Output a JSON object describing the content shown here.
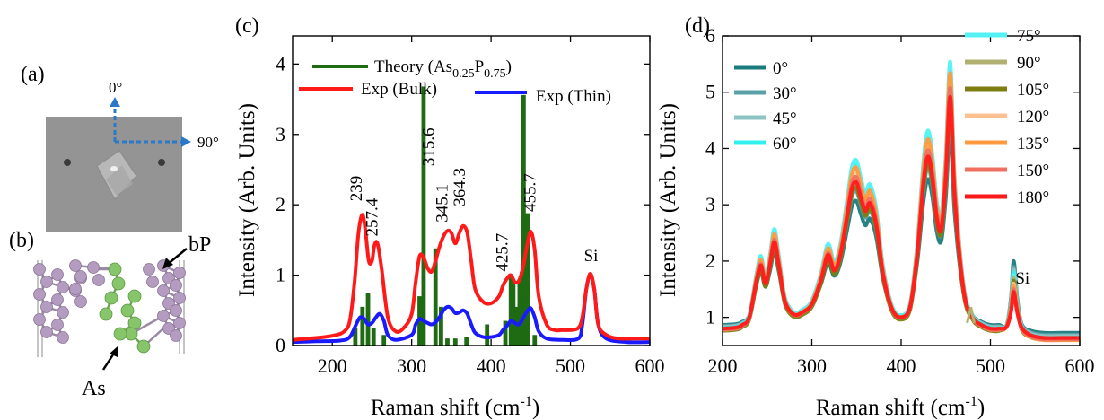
{
  "panels": {
    "a": {
      "label": "(a)",
      "directions": [
        "0°",
        "90°"
      ]
    },
    "b": {
      "label": "(b)",
      "annotations": [
        "bP",
        "As"
      ]
    }
  },
  "colors": {
    "theory": "#1e6b14",
    "bulk": "#ff1a1a",
    "thin": "#1a1aff",
    "arrow_blue": "#2a78c8",
    "atom_p": "#b49bc0",
    "atom_as": "#86c56a"
  },
  "chart_data": [
    {
      "panel": "(c)",
      "type": "line",
      "xlabel": "Raman shift (cm",
      "xlabel_sup": "-1",
      "xlabel_tail": ")",
      "ylabel": "Intensity (Arb. Units)",
      "xlim": [
        150,
        600
      ],
      "ylim": [
        0,
        4.4
      ],
      "xticks": [
        200,
        300,
        400,
        500,
        600
      ],
      "yticks": [
        0,
        1,
        2,
        3,
        4
      ],
      "legend": {
        "placement": "top",
        "entries": [
          {
            "series": "theory",
            "text": "Theory (As",
            "sub1": "0.25",
            "mid": "P",
            "sub2": "0.75",
            "tail": ")"
          },
          {
            "series": "bulk",
            "text": "Exp (Bulk)"
          },
          {
            "series": "thin",
            "text": "Exp (Thin)"
          }
        ]
      },
      "series": [
        {
          "name": "Theory (As0.25P0.75)",
          "key": "theory",
          "kind": "stick",
          "x": [
            229,
            238,
            245,
            252,
            265,
            310,
            315,
            330,
            337,
            345,
            355,
            369,
            395,
            418,
            425,
            428,
            432,
            436,
            439,
            441,
            443,
            446,
            455
          ],
          "y": [
            0.25,
            0.55,
            0.75,
            0.25,
            0.15,
            0.7,
            3.68,
            1.38,
            0.55,
            0.1,
            0.1,
            0.12,
            0.3,
            0.35,
            0.98,
            0.9,
            0.55,
            0.9,
            1.05,
            3.56,
            0.7,
            1.88,
            0.15
          ]
        },
        {
          "name": "Exp (Bulk)",
          "key": "bulk",
          "kind": "line",
          "x": [
            150,
            170,
            190,
            205,
            215,
            222,
            228,
            233,
            238,
            242,
            246,
            250,
            253,
            257,
            262,
            270,
            280,
            290,
            300,
            305,
            310,
            315,
            320,
            325,
            330,
            335,
            340,
            345,
            350,
            355,
            360,
            365,
            370,
            375,
            380,
            390,
            400,
            410,
            415,
            420,
            425,
            430,
            435,
            440,
            445,
            450,
            455,
            460,
            470,
            480,
            490,
            500,
            510,
            515,
            520,
            525,
            530,
            535,
            545,
            560,
            580,
            600
          ],
          "y": [
            0.08,
            0.1,
            0.12,
            0.15,
            0.2,
            0.35,
            0.9,
            1.6,
            1.86,
            1.6,
            1.2,
            1.2,
            1.42,
            1.45,
            1.1,
            0.4,
            0.2,
            0.25,
            0.45,
            0.9,
            1.27,
            1.25,
            1.1,
            1.05,
            1.2,
            1.4,
            1.55,
            1.63,
            1.6,
            1.45,
            1.6,
            1.7,
            1.6,
            1.2,
            0.8,
            0.62,
            0.6,
            0.7,
            0.85,
            0.95,
            1.0,
            0.9,
            0.92,
            1.1,
            1.4,
            1.62,
            1.35,
            0.7,
            0.3,
            0.22,
            0.22,
            0.22,
            0.25,
            0.4,
            0.8,
            1.02,
            0.8,
            0.3,
            0.15,
            0.1,
            0.1,
            0.1
          ]
        },
        {
          "name": "Exp (Thin)",
          "key": "thin",
          "kind": "line",
          "x": [
            150,
            180,
            210,
            222,
            230,
            235,
            240,
            245,
            250,
            255,
            260,
            265,
            270,
            280,
            300,
            305,
            310,
            315,
            320,
            325,
            330,
            335,
            340,
            345,
            350,
            355,
            360,
            365,
            370,
            375,
            380,
            390,
            400,
            410,
            415,
            420,
            425,
            430,
            435,
            440,
            445,
            450,
            455,
            460,
            470,
            490,
            510,
            515,
            520,
            525,
            530,
            535,
            545,
            570,
            600
          ],
          "y": [
            0.05,
            0.06,
            0.07,
            0.12,
            0.3,
            0.4,
            0.38,
            0.3,
            0.32,
            0.4,
            0.45,
            0.35,
            0.15,
            0.08,
            0.15,
            0.3,
            0.38,
            0.35,
            0.32,
            0.3,
            0.33,
            0.4,
            0.5,
            0.55,
            0.53,
            0.46,
            0.47,
            0.5,
            0.45,
            0.3,
            0.18,
            0.12,
            0.12,
            0.15,
            0.22,
            0.28,
            0.35,
            0.32,
            0.3,
            0.38,
            0.48,
            0.53,
            0.4,
            0.2,
            0.1,
            0.08,
            0.1,
            0.3,
            0.8,
            1.0,
            0.8,
            0.3,
            0.1,
            0.05,
            0.05
          ]
        }
      ],
      "annotations": [
        {
          "text": "239",
          "x": 237,
          "y": 2.05,
          "rotate": true
        },
        {
          "text": "257.4",
          "x": 257,
          "y": 1.55,
          "rotate": true
        },
        {
          "text": "315.6",
          "x": 328,
          "y": 2.55,
          "rotate": true
        },
        {
          "text": "345.1",
          "x": 345,
          "y": 1.75,
          "rotate": true
        },
        {
          "text": "364.3",
          "x": 367,
          "y": 1.98,
          "rotate": true
        },
        {
          "text": "425.7",
          "x": 421,
          "y": 1.05,
          "rotate": true
        },
        {
          "text": "455.7",
          "x": 456,
          "y": 1.9,
          "rotate": true
        },
        {
          "text": "Si",
          "x": 526,
          "y": 1.2,
          "rotate": false
        }
      ]
    },
    {
      "panel": "(d)",
      "type": "line",
      "xlabel": "Raman shift (cm",
      "xlabel_sup": "-1",
      "xlabel_tail": ")",
      "ylabel": "Intensity (Arb. Units)",
      "xlim": [
        200,
        600
      ],
      "ylim": [
        0.5,
        6
      ],
      "xticks": [
        200,
        300,
        400,
        500,
        600
      ],
      "yticks": [
        1,
        2,
        3,
        4,
        5,
        6
      ],
      "legend": {
        "placement": "top",
        "left_entries": [
          "0°",
          "30°",
          "45°",
          "60°"
        ],
        "right_entries": [
          "75°",
          "90°",
          "105°",
          "120°",
          "135°",
          "150°",
          "180°"
        ]
      },
      "base_profile": {
        "x": [
          200,
          215,
          222,
          230,
          238,
          243,
          248,
          253,
          258,
          263,
          270,
          280,
          290,
          300,
          310,
          318,
          325,
          332,
          340,
          345,
          350,
          355,
          360,
          365,
          372,
          380,
          390,
          400,
          410,
          418,
          425,
          430,
          435,
          440,
          445,
          450,
          455,
          460,
          470,
          480,
          490,
          500,
          510,
          518,
          523,
          526,
          530,
          535,
          545,
          560,
          580,
          600
        ],
        "y": [
          0.78,
          0.8,
          0.85,
          1.0,
          1.7,
          2.0,
          1.65,
          2.0,
          2.45,
          2.0,
          1.3,
          1.05,
          1.1,
          1.25,
          1.7,
          2.2,
          1.9,
          2.2,
          3.0,
          3.5,
          3.6,
          3.3,
          3.05,
          3.2,
          2.8,
          1.8,
          1.15,
          1.0,
          1.2,
          2.2,
          3.6,
          4.1,
          3.7,
          2.9,
          2.7,
          3.7,
          5.25,
          3.3,
          1.5,
          1.0,
          0.85,
          0.78,
          0.78,
          0.85,
          1.3,
          1.9,
          1.3,
          0.8,
          0.65,
          0.6,
          0.6,
          0.6
        ]
      },
      "series": [
        {
          "name": "0°",
          "color": "#1b7b7d",
          "scale": 0.78,
          "offset": 0.08,
          "si": 2.0
        },
        {
          "name": "30°",
          "color": "#5aa0a6",
          "scale": 0.85,
          "offset": 0.06,
          "si": 1.9
        },
        {
          "name": "45°",
          "color": "#8cc4c4",
          "scale": 0.9,
          "offset": 0.05,
          "si": 1.85
        },
        {
          "name": "60°",
          "color": "#33f0f0",
          "scale": 1.04,
          "offset": 0.03,
          "si": 1.8
        },
        {
          "name": "75°",
          "color": "#55f2f4",
          "scale": 1.06,
          "offset": 0.02,
          "si": 1.75
        },
        {
          "name": "90°",
          "color": "#b0b070",
          "scale": 1.0,
          "offset": 0.0,
          "si": 1.7
        },
        {
          "name": "105°",
          "color": "#7d7d10",
          "scale": 0.9,
          "offset": -0.02,
          "si": 1.65
        },
        {
          "name": "120°",
          "color": "#ffc090",
          "scale": 1.0,
          "offset": 0.0,
          "si": 1.6
        },
        {
          "name": "135°",
          "color": "#ff9a40",
          "scale": 1.02,
          "offset": 0.0,
          "si": 1.55
        },
        {
          "name": "150°",
          "color": "#f07060",
          "scale": 0.96,
          "offset": 0.0,
          "si": 1.5
        },
        {
          "name": "180°",
          "color": "#ff1a1a",
          "scale": 0.92,
          "offset": 0.02,
          "si": 1.45
        }
      ],
      "annotations": [
        {
          "text": "Si",
          "x": 528,
          "y": 1.6
        }
      ]
    }
  ]
}
